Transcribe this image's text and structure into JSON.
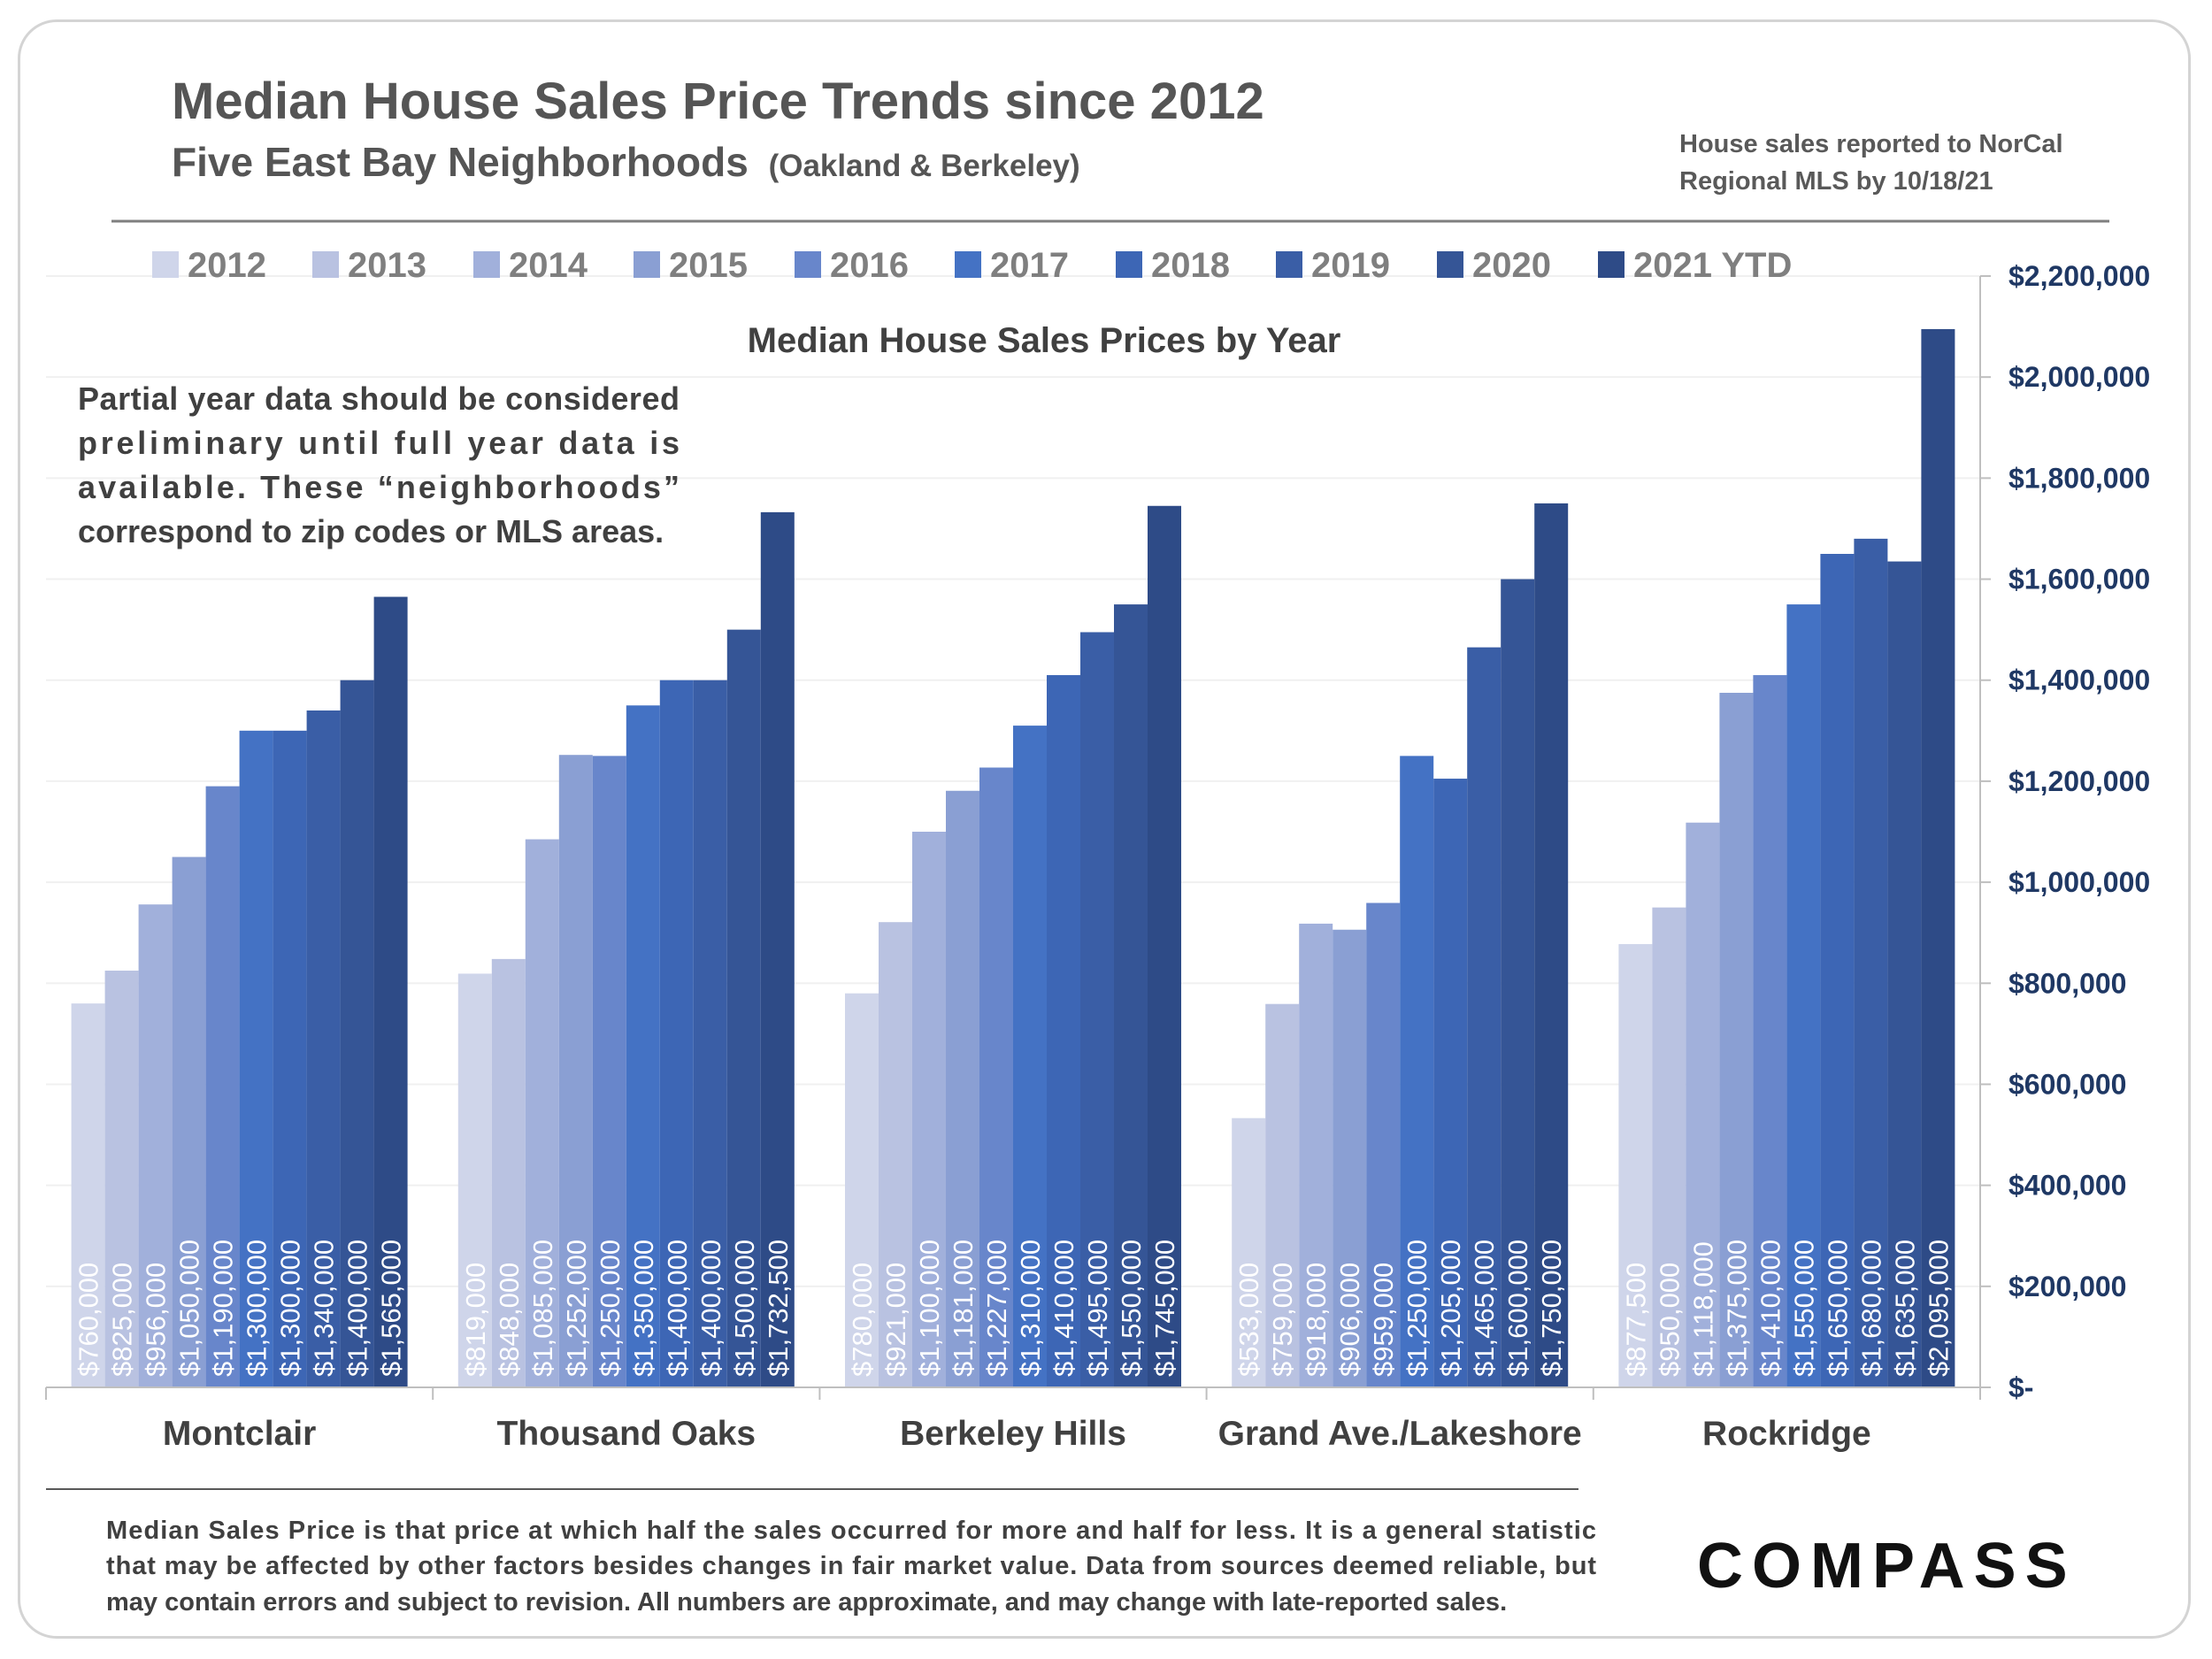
{
  "header": {
    "title": "Median House Sales Price Trends since 2012",
    "subtitle": "Five East Bay Neighborhoods",
    "subtitle_paren": "(Oakland & Berkeley)",
    "source_line1": "House sales reported to NorCal",
    "source_line2": "Regional MLS by 10/18/21"
  },
  "note": {
    "lines": [
      "Partial year data should be considered",
      "preliminary until full year data is",
      "available. These “neighborhoods”",
      "correspond to zip codes or MLS areas."
    ]
  },
  "footer": {
    "lines": [
      "Median Sales Price is that price at which half the sales occurred for more and half for less. It is a general statistic",
      "that may be affected by other factors besides changes in fair market value. Data from sources deemed reliable, but",
      "may contain errors and subject to revision.  All numbers are approximate, and may change with late-reported sales."
    ]
  },
  "logo": {
    "text": "COMPASS"
  },
  "colors": {
    "series": [
      "#cfd5ea",
      "#b9c2e1",
      "#a1b0db",
      "#8a9fd3",
      "#6886cb",
      "#4472c4",
      "#3d66b5",
      "#3a5ea6",
      "#355596",
      "#2e4b87"
    ],
    "tick_text": "#1f3864",
    "axis": "#bfbfbf"
  },
  "chart_data": {
    "type": "bar",
    "title": "Median House Sales Prices by Year",
    "categories": [
      "Montclair",
      "Thousand Oaks",
      "Berkeley Hills",
      "Grand Ave./Lakeshore",
      "Rockridge"
    ],
    "series": [
      {
        "name": "2012",
        "values": [
          760000,
          819000,
          780000,
          533000,
          877500
        ]
      },
      {
        "name": "2013",
        "values": [
          825000,
          848000,
          921000,
          759000,
          950000
        ]
      },
      {
        "name": "2014",
        "values": [
          956000,
          1085000,
          1100000,
          918000,
          1118000
        ]
      },
      {
        "name": "2015",
        "values": [
          1050000,
          1252000,
          1181000,
          906000,
          1375000
        ]
      },
      {
        "name": "2016",
        "values": [
          1190000,
          1250000,
          1227000,
          959000,
          1410000
        ]
      },
      {
        "name": "2017",
        "values": [
          1300000,
          1350000,
          1310000,
          1250000,
          1550000
        ]
      },
      {
        "name": "2018",
        "values": [
          1300000,
          1400000,
          1410000,
          1205000,
          1650000
        ]
      },
      {
        "name": "2019",
        "values": [
          1340000,
          1400000,
          1495000,
          1465000,
          1680000
        ]
      },
      {
        "name": "2020",
        "values": [
          1400000,
          1500000,
          1550000,
          1600000,
          1635000
        ]
      },
      {
        "name": "2021 YTD",
        "values": [
          1565000,
          1732500,
          1745000,
          1750000,
          2095000
        ]
      }
    ],
    "labels": [
      [
        "$760,000",
        "$825,000",
        "$956,000",
        "$1,050,000",
        "$1,190,000",
        "$1,300,000",
        "$1,300,000",
        "$1,340,000",
        "$1,400,000",
        "$1,565,000"
      ],
      [
        "$819,000",
        "$848,000",
        "$1,085,000",
        "$1,252,000",
        "$1,250,000",
        "$1,350,000",
        "$1,400,000",
        "$1,400,000",
        "$1,500,000",
        "$1,732,500"
      ],
      [
        "$780,000",
        "$921,000",
        "$1,100,000",
        "$1,181,000",
        "$1,227,000",
        "$1,310,000",
        "$1,410,000",
        "$1,495,000",
        "$1,550,000",
        "$1,745,000"
      ],
      [
        "$533,000",
        "$759,000",
        "$918,000",
        "$906,000",
        "$959,000",
        "$1,250,000",
        "$1,205,000",
        "$1,465,000",
        "$1,600,000",
        "$1,750,000"
      ],
      [
        "$877,500",
        "$950,000",
        "$1,118,000",
        "$1,375,000",
        "$1,410,000",
        "$1,550,000",
        "$1,650,000",
        "$1,680,000",
        "$1,635,000",
        "$2,095,000"
      ]
    ],
    "ylim": [
      0,
      2200000
    ],
    "yticks": [
      0,
      200000,
      400000,
      600000,
      800000,
      1000000,
      1200000,
      1400000,
      1600000,
      1800000,
      2000000,
      2200000
    ],
    "ytick_labels": [
      "$-",
      "$200,000",
      "$400,000",
      "$600,000",
      "$800,000",
      "$1,000,000",
      "$1,200,000",
      "$1,400,000",
      "$1,600,000",
      "$1,800,000",
      "$2,000,000",
      "$2,200,000"
    ],
    "y_axis_side": "right",
    "grid": true,
    "legend": "top"
  }
}
